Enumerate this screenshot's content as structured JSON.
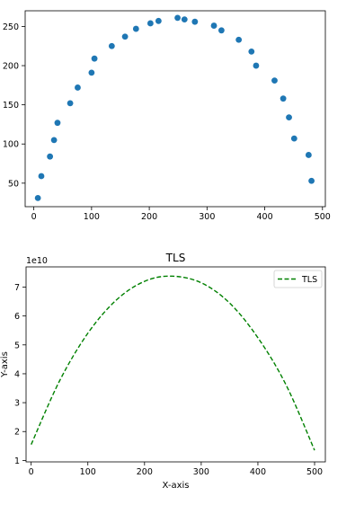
{
  "chart_data": [
    {
      "type": "scatter",
      "title": "",
      "xlabel": "",
      "ylabel": "",
      "xlim": [
        -15,
        505
      ],
      "ylim": [
        20,
        270
      ],
      "xticks": [
        0,
        100,
        200,
        300,
        400,
        500
      ],
      "yticks": [
        50,
        100,
        150,
        200,
        250
      ],
      "xtick_labels": [
        "0",
        "100",
        "200",
        "300",
        "400",
        "500"
      ],
      "ytick_labels": [
        "50",
        "100",
        "150",
        "200",
        "250"
      ],
      "grid": false,
      "color": "#1f77b4",
      "series": [
        {
          "x": [
            7,
            13,
            28,
            35,
            41,
            63,
            76,
            100,
            105,
            135,
            158,
            177,
            202,
            216,
            249,
            261,
            279,
            312,
            325,
            355,
            377,
            385,
            417,
            432,
            442,
            451,
            476,
            481
          ],
          "y": [
            31,
            59,
            84,
            105,
            127,
            152,
            172,
            191,
            209,
            225,
            237,
            247,
            254,
            257,
            261,
            259,
            256,
            251,
            245,
            233,
            218,
            200,
            181,
            158,
            134,
            107,
            86,
            53
          ]
        }
      ]
    },
    {
      "type": "line",
      "title": "TLS",
      "xlabel": "X-axis",
      "ylabel": "Y-axis",
      "y_offset_label": "1e10",
      "xlim": [
        -9,
        519
      ],
      "ylim": [
        0.95,
        7.7
      ],
      "xticks": [
        0,
        100,
        200,
        300,
        400,
        500
      ],
      "yticks": [
        1,
        2,
        3,
        4,
        5,
        6,
        7
      ],
      "xtick_labels": [
        "0",
        "100",
        "200",
        "300",
        "400",
        "500"
      ],
      "ytick_labels": [
        "1",
        "2",
        "3",
        "4",
        "5",
        "6",
        "7"
      ],
      "grid": false,
      "legend": "top-right",
      "color": "#008000",
      "linestyle": "dashed",
      "series": [
        {
          "name": "TLS",
          "x": [
            0,
            50,
            100,
            150,
            200,
            248,
            300,
            350,
            400,
            450,
            500
          ],
          "y": [
            1.55,
            3.75,
            5.4,
            6.55,
            7.2,
            7.38,
            7.15,
            6.45,
            5.25,
            3.6,
            1.35
          ]
        }
      ]
    }
  ]
}
